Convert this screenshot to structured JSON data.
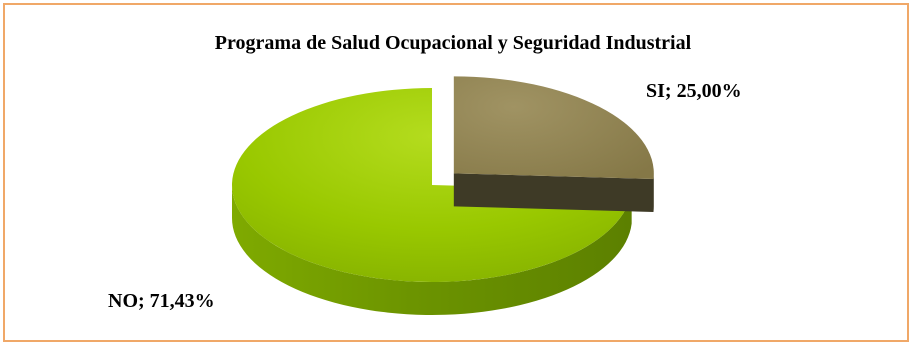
{
  "chart_data": {
    "type": "pie",
    "title": "Programa de Salud Ocupacional y Seguridad Industrial",
    "slices": [
      {
        "category": "SI",
        "value": 25.0,
        "label": "SI; 25,00%",
        "color": "#8e8152",
        "side_color": "#3e3a26"
      },
      {
        "category": "NO",
        "value": 71.43,
        "label": "NO; 71,43%",
        "color": "#96c400",
        "side_color": "#6e9a00"
      }
    ],
    "legend": "none",
    "border_color": "#f0a868"
  }
}
